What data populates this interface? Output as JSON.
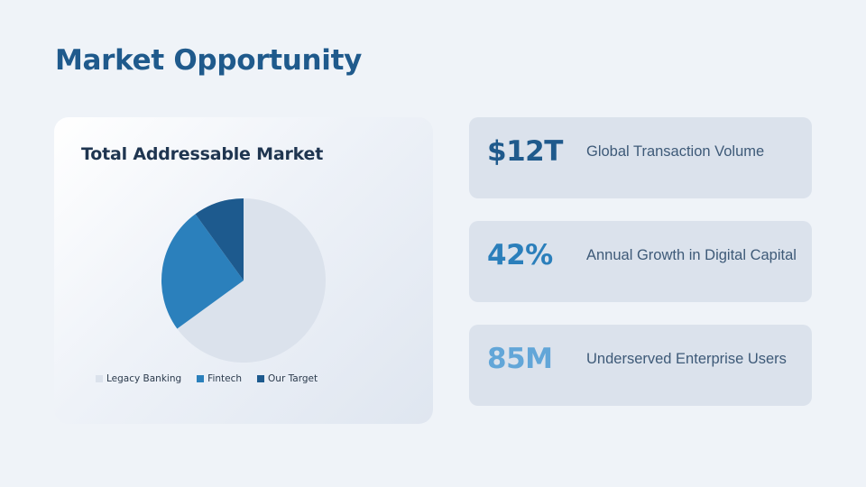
{
  "page": {
    "title": "Market Opportunity"
  },
  "chart_data": {
    "type": "pie",
    "title": "Total Addressable Market",
    "categories": [
      "Legacy Banking",
      "Fintech",
      "Our Target"
    ],
    "values": [
      65,
      25,
      10
    ],
    "colors": [
      "#dbe2ec",
      "#2b80bc",
      "#1d5a8e"
    ],
    "legend_position": "bottom"
  },
  "stats": [
    {
      "value": "$12T",
      "label": "Global Transaction Volume",
      "color": "#1f5a8c"
    },
    {
      "value": "42%",
      "label": "Annual Growth in Digital Capital",
      "color": "#2b7fbb"
    },
    {
      "value": "85M",
      "label": "Underserved Enterprise Users",
      "color": "#62a6d8"
    }
  ]
}
